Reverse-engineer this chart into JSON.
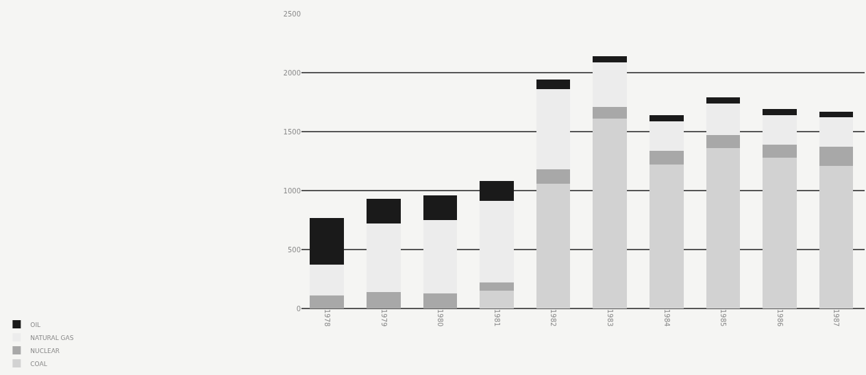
{
  "chart_data": {
    "type": "bar",
    "stacked": true,
    "categories": [
      "1978",
      "1979",
      "1980",
      "1981",
      "1982",
      "1983",
      "1984",
      "1985",
      "1986",
      "1987"
    ],
    "series": [
      {
        "name": "COAL",
        "color": "#d2d2d2",
        "values": [
          0,
          0,
          0,
          150,
          1060,
          1610,
          1220,
          1360,
          1280,
          1210
        ]
      },
      {
        "name": "NUCLEAR",
        "color": "#a8a8a8",
        "values": [
          110,
          140,
          130,
          70,
          120,
          100,
          120,
          110,
          110,
          160
        ]
      },
      {
        "name": "NATURAL GAS",
        "color": "#ececec",
        "values": [
          260,
          580,
          620,
          690,
          680,
          380,
          250,
          270,
          250,
          250
        ]
      },
      {
        "name": "OIL",
        "color": "#1a1a1a",
        "values": [
          400,
          210,
          210,
          170,
          80,
          50,
          50,
          50,
          50,
          50
        ]
      }
    ],
    "ylim": [
      0,
      2500
    ],
    "yticks": [
      0,
      500,
      1000,
      1500,
      2000,
      2500
    ],
    "grid": "y",
    "legend": "bottom left"
  }
}
